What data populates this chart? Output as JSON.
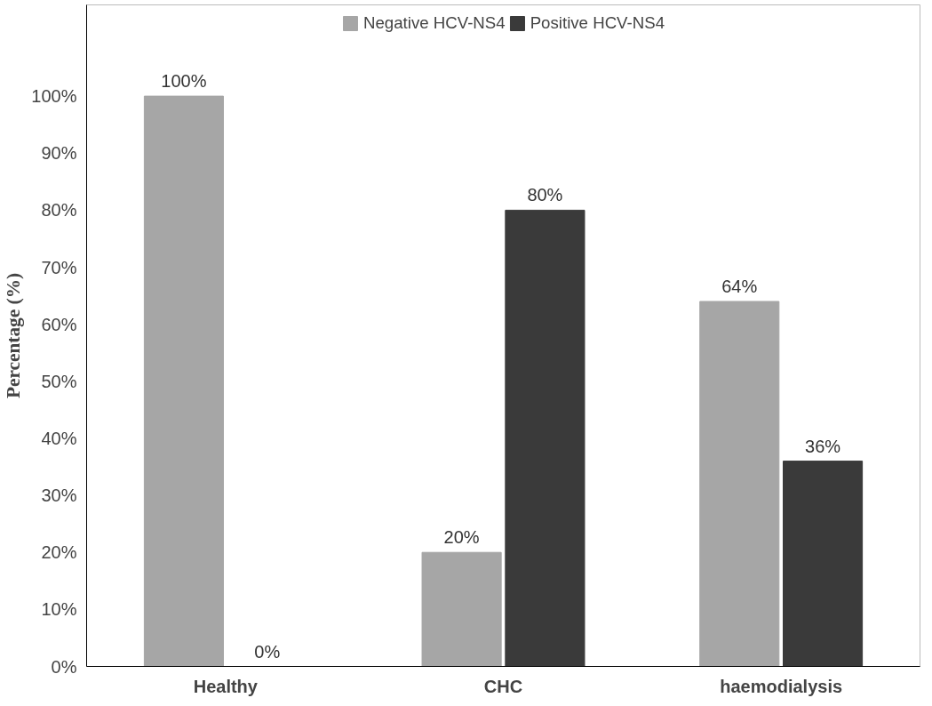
{
  "chart_data": {
    "type": "bar",
    "ylabel": "Percentage (%)",
    "categories": [
      "Healthy",
      "CHC",
      "haemodialysis"
    ],
    "series": [
      {
        "name": "Negative HCV-NS4",
        "color": "#a6a6a6",
        "values": [
          100,
          20,
          64
        ],
        "value_labels": [
          "100%",
          "20%",
          "64%"
        ]
      },
      {
        "name": "Positive HCV-NS4",
        "color": "#3a3a3a",
        "values": [
          0,
          80,
          36
        ],
        "value_labels": [
          "0%",
          "80%",
          "36%"
        ]
      }
    ],
    "ylim": [
      0,
      116
    ],
    "yticks": [
      {
        "value": 0,
        "label": "0%"
      },
      {
        "value": 10,
        "label": "10%"
      },
      {
        "value": 20,
        "label": "20%"
      },
      {
        "value": 30,
        "label": "30%"
      },
      {
        "value": 40,
        "label": "40%"
      },
      {
        "value": 50,
        "label": "50%"
      },
      {
        "value": 60,
        "label": "60%"
      },
      {
        "value": 70,
        "label": "70%"
      },
      {
        "value": 80,
        "label": "80%"
      },
      {
        "value": 90,
        "label": "90%"
      },
      {
        "value": 100,
        "label": "100%"
      }
    ],
    "grid": false,
    "legend": "top"
  }
}
